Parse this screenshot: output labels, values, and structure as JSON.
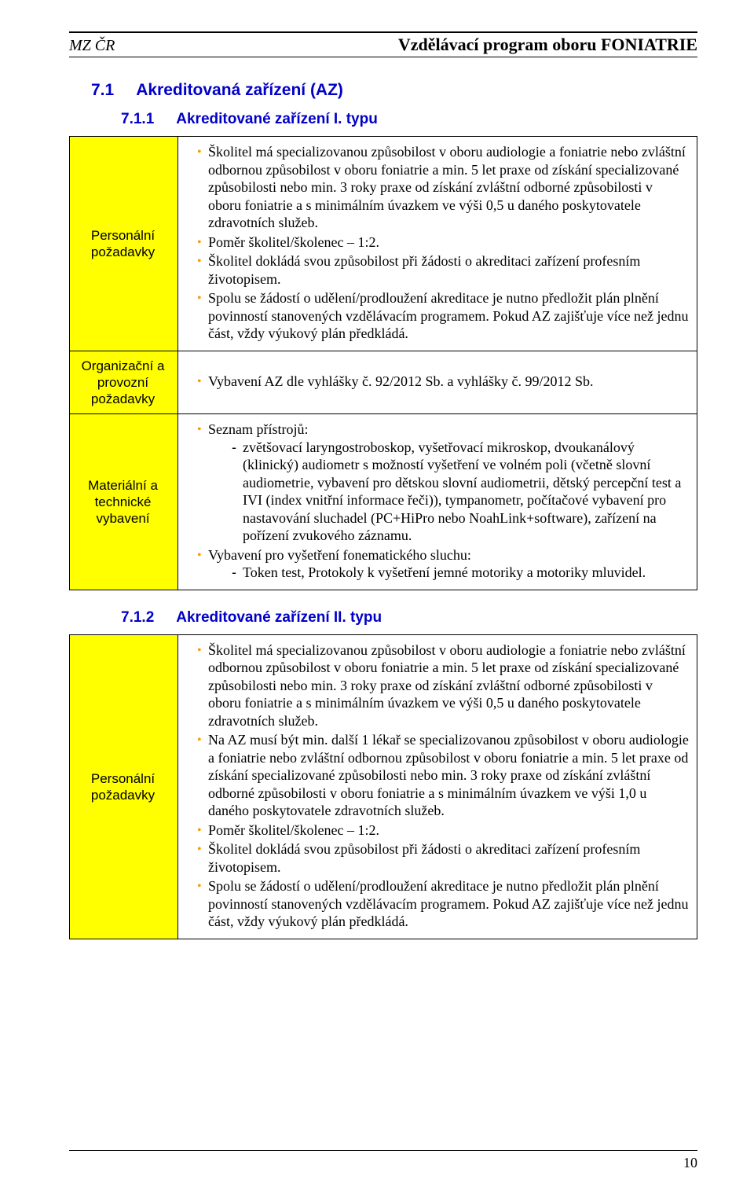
{
  "header": {
    "left": "MZ ČR",
    "right": "Vzdělávací program oboru FONIATRIE"
  },
  "section1": {
    "num": "7.1",
    "title": "Akreditovaná zařízení (AZ)"
  },
  "section11": {
    "num": "7.1.1",
    "title": "Akreditované zařízení I. typu"
  },
  "table1": {
    "rows": {
      "personal": {
        "label": "Personální požadavky",
        "items": [
          "Školitel má specializovanou způsobilost v oboru audiologie a foniatrie nebo zvláštní odbornou způsobilost v oboru foniatrie a min. 5 let praxe od získání specializované způsobilosti nebo min. 3 roky praxe od získání zvláštní odborné způsobilosti v oboru foniatrie a s minimálním úvazkem ve výši 0,5 u daného poskytovatele zdravotních služeb.",
          "Poměr školitel/školenec – 1:2.",
          "Školitel dokládá svou způsobilost při žádosti o akreditaci zařízení profesním životopisem.",
          "Spolu se žádostí o udělení/prodloužení akreditace je nutno předložit plán plnění povinností stanovených vzdělávacím programem. Pokud AZ zajišťuje více než jednu část, vždy výukový plán předkládá."
        ]
      },
      "org": {
        "label": "Organizační a provozní požadavky",
        "items": [
          "Vybavení AZ dle vyhlášky č. 92/2012 Sb. a vyhlášky č. 99/2012 Sb."
        ]
      },
      "material": {
        "label": "Materiální a technické vybavení",
        "item0": "Seznam přístrojů:",
        "sub0": "zvětšovací laryngostroboskop, vyšetřovací mikroskop, dvoukanálový (klinický) audiometr s možností vyšetření ve volném poli (včetně slovní audiometrie, vybavení pro dětskou slovní audiometrii, dětský percepční test a IVI (index vnitřní informace řeči)), tympanometr, počítačové vybavení pro nastavování sluchadel (PC+HiPro nebo NoahLink+software), zařízení na pořízení zvukového záznamu.",
        "item1": "Vybavení pro vyšetření fonematického sluchu:",
        "sub1": "Token test, Protokoly k vyšetření jemné motoriky a motoriky mluvidel."
      }
    }
  },
  "section12": {
    "num": "7.1.2",
    "title": "Akreditované zařízení II. typu"
  },
  "table2": {
    "rows": {
      "personal": {
        "label": "Personální požadavky",
        "items": [
          "Školitel má specializovanou způsobilost v oboru audiologie a foniatrie nebo zvláštní odbornou způsobilost v oboru foniatrie a min. 5 let praxe od získání specializované způsobilosti nebo min. 3 roky praxe od získání zvláštní odborné způsobilosti v oboru foniatrie a s minimálním úvazkem ve výši 0,5 u daného poskytovatele zdravotních služeb.",
          "Na AZ musí být min. další 1 lékař se specializovanou způsobilost v oboru audiologie a foniatrie nebo zvláštní odbornou způsobilost v oboru foniatrie a min. 5 let praxe od získání specializované způsobilosti nebo min. 3 roky praxe od získání zvláštní odborné způsobilosti v oboru foniatrie a s minimálním úvazkem ve výši 1,0 u daného poskytovatele zdravotních služeb.",
          "Poměr školitel/školenec – 1:2.",
          "Školitel dokládá svou způsobilost při žádosti o akreditaci zařízení profesním životopisem.",
          "Spolu se žádostí o udělení/prodloužení akreditace je nutno předložit plán plnění povinností stanovených vzdělávacím programem. Pokud AZ zajišťuje více než jednu část, vždy výukový plán předkládá."
        ]
      }
    }
  },
  "pageNumber": "10"
}
